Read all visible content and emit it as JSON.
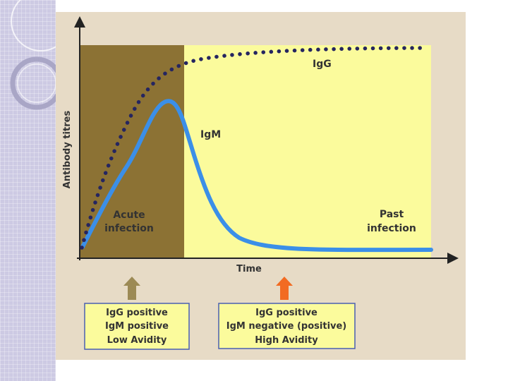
{
  "diagram": {
    "y_axis_label": "Antibody titres",
    "x_axis_label": "Time",
    "curves": {
      "igg": "IgG",
      "igm": "IgM"
    },
    "phases": {
      "acute": [
        "Acute",
        "infection"
      ],
      "past": [
        "Past",
        "infection"
      ]
    },
    "boxes": {
      "acute": {
        "line1": "IgG positive",
        "line2": "IgM positive",
        "line3": "Low Avidity"
      },
      "past": {
        "line1": "IgG positive",
        "line2": "IgM negative (positive)",
        "line3": "High Avidity"
      }
    }
  },
  "colors": {
    "acute_region": "#8c7234",
    "past_region": "#fbfb9c",
    "igg_dots": "#252560",
    "igm_line": "#3b8fe8",
    "box_border": "#4a5fb0",
    "avidity_text": "#e8332a",
    "arrow_acute": "#9c8a55",
    "arrow_past": "#f26b22"
  }
}
